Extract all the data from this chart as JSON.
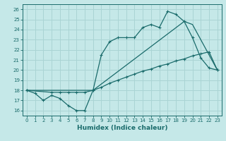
{
  "xlabel": "Humidex (Indice chaleur)",
  "xlim": [
    -0.5,
    23.5
  ],
  "ylim": [
    15.5,
    26.5
  ],
  "xticks": [
    0,
    1,
    2,
    3,
    4,
    5,
    6,
    7,
    8,
    9,
    10,
    11,
    12,
    13,
    14,
    15,
    16,
    17,
    18,
    19,
    20,
    21,
    22,
    23
  ],
  "yticks": [
    16,
    17,
    18,
    19,
    20,
    21,
    22,
    23,
    24,
    25,
    26
  ],
  "bg_color": "#c5e8e8",
  "grid_color": "#aad4d4",
  "line_color": "#1a6b6b",
  "line1_x": [
    0,
    1,
    2,
    3,
    4,
    5,
    6,
    7,
    8,
    9,
    10,
    11,
    12,
    13,
    14,
    15,
    16,
    17,
    18,
    19,
    20,
    21,
    22,
    23
  ],
  "line1_y": [
    18,
    17.7,
    17.0,
    17.5,
    17.2,
    16.5,
    16.0,
    16.0,
    18.0,
    21.5,
    22.8,
    23.2,
    23.2,
    23.2,
    24.2,
    24.5,
    24.2,
    25.8,
    25.5,
    24.8,
    23.2,
    21.2,
    20.2,
    20.0
  ],
  "line2_x": [
    0,
    3,
    4,
    5,
    6,
    7,
    8,
    9,
    10,
    11,
    12,
    13,
    14,
    15,
    16,
    17,
    18,
    19,
    20,
    21,
    22,
    23
  ],
  "line2_y": [
    18,
    17.8,
    17.8,
    17.8,
    17.8,
    17.8,
    18.0,
    18.3,
    18.7,
    19.0,
    19.3,
    19.6,
    19.9,
    20.1,
    20.4,
    20.6,
    20.9,
    21.1,
    21.4,
    21.6,
    21.8,
    20.0
  ],
  "line3_x": [
    0,
    8,
    19,
    20,
    23
  ],
  "line3_y": [
    18,
    18.0,
    24.8,
    24.5,
    20.0
  ]
}
